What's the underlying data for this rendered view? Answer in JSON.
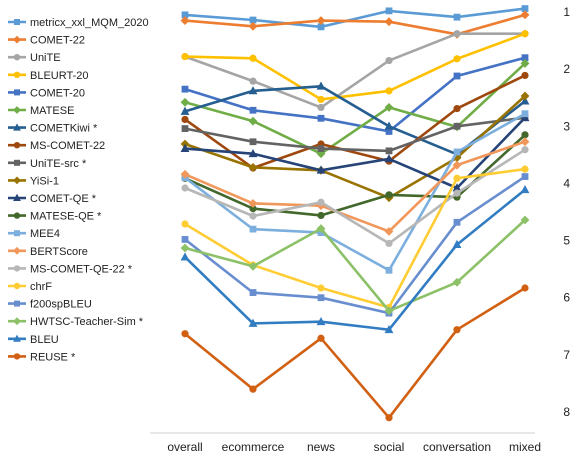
{
  "chart_data": {
    "type": "line",
    "title": "",
    "xlabel": "",
    "ylabel": "",
    "x": [
      "overall",
      "ecommerce",
      "news",
      "social",
      "conversation",
      "mixed"
    ],
    "ylim": [
      1,
      8
    ],
    "y_inverted": true,
    "y_ticks": [
      "1",
      "2",
      "3",
      "4",
      "5",
      "6",
      "7",
      "8"
    ],
    "y_axis_position": "right",
    "grid": false,
    "legend_position": "left",
    "series": [
      {
        "name": "metricx_xxl_MQM_2020",
        "color": "#5B9BD5",
        "marker": "square",
        "values": [
          1.05,
          1.14,
          1.26,
          0.98,
          1.09,
          0.94
        ]
      },
      {
        "name": "COMET-22",
        "color": "#ED7D31",
        "marker": "diamond",
        "values": [
          1.15,
          1.25,
          1.15,
          1.17,
          1.39,
          1.05
        ]
      },
      {
        "name": "UniTE",
        "color": "#A5A5A5",
        "marker": "circle",
        "values": [
          1.78,
          2.21,
          2.67,
          1.85,
          1.38,
          1.38
        ]
      },
      {
        "name": "BLEURT-20",
        "color": "#FFC000",
        "marker": "circle",
        "values": [
          1.78,
          1.81,
          2.53,
          2.38,
          1.82,
          1.38
        ]
      },
      {
        "name": "COMET-20",
        "color": "#4472C4",
        "marker": "square",
        "values": [
          2.35,
          2.72,
          2.86,
          3.09,
          2.12,
          1.8
        ]
      },
      {
        "name": "MATESE",
        "color": "#70AD47",
        "marker": "diamond",
        "values": [
          2.58,
          2.91,
          3.48,
          2.67,
          3.01,
          1.9
        ]
      },
      {
        "name": "COMETKiwi *",
        "color": "#255E91",
        "marker": "triangle",
        "values": [
          2.74,
          2.38,
          2.3,
          3.0,
          3.49,
          2.56
        ]
      },
      {
        "name": "MS-COMET-22",
        "color": "#9E480E",
        "marker": "circle",
        "values": [
          2.88,
          3.73,
          3.31,
          3.61,
          2.69,
          2.11
        ]
      },
      {
        "name": "UniTE-src *",
        "color": "#636363",
        "marker": "square",
        "values": [
          3.04,
          3.27,
          3.39,
          3.43,
          3.0,
          2.85
        ]
      },
      {
        "name": "YiSi-1",
        "color": "#997300",
        "marker": "diamond",
        "values": [
          3.31,
          3.72,
          3.77,
          4.25,
          3.55,
          2.47
        ]
      },
      {
        "name": "COMET-QE *",
        "color": "#264478",
        "marker": "triangle",
        "values": [
          3.39,
          3.48,
          3.77,
          3.57,
          4.08,
          2.85
        ]
      },
      {
        "name": "MATESE-QE *",
        "color": "#43682B",
        "marker": "circle",
        "values": [
          3.91,
          4.44,
          4.56,
          4.2,
          4.24,
          3.15
        ]
      },
      {
        "name": "MEE4",
        "color": "#7CAFDD",
        "marker": "square",
        "values": [
          3.9,
          4.8,
          4.86,
          5.52,
          3.45,
          2.78
        ]
      },
      {
        "name": "BERTScore",
        "color": "#F1975A",
        "marker": "diamond",
        "values": [
          3.84,
          4.35,
          4.39,
          4.84,
          3.68,
          3.27
        ]
      },
      {
        "name": "MS-COMET-QE-22 *",
        "color": "#B7B7B7",
        "marker": "circle",
        "values": [
          4.08,
          4.57,
          4.33,
          5.05,
          4.17,
          3.41
        ]
      },
      {
        "name": "chrF",
        "color": "#FFCD33",
        "marker": "circle",
        "values": [
          4.71,
          5.43,
          5.83,
          6.17,
          3.91,
          3.75
        ]
      },
      {
        "name": "f200spBLEU",
        "color": "#698ED0",
        "marker": "square",
        "values": [
          4.98,
          5.91,
          6.0,
          6.27,
          4.68,
          3.88
        ]
      },
      {
        "name": "HWTSC-Teacher-Sim *",
        "color": "#8CC168",
        "marker": "diamond",
        "values": [
          5.13,
          5.45,
          4.79,
          6.23,
          5.73,
          4.64
        ]
      },
      {
        "name": "BLEU",
        "color": "#327DC2",
        "marker": "triangle",
        "values": [
          5.29,
          6.45,
          6.42,
          6.56,
          5.07,
          4.11
        ]
      },
      {
        "name": "REUSE *",
        "color": "#D26012",
        "marker": "circle",
        "values": [
          6.63,
          7.6,
          6.71,
          8.1,
          6.56,
          5.83
        ]
      }
    ]
  }
}
